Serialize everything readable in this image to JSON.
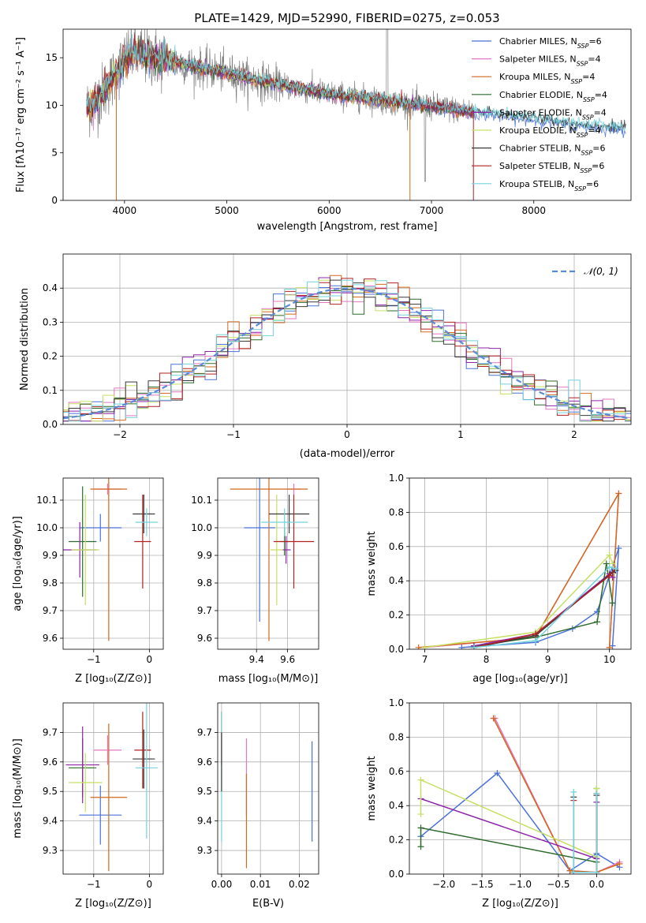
{
  "title": "PLATE=1429, MJD=52990, FIBERID=0275, z=0.053",
  "colors": {
    "chabrier_miles": "#4c72d8",
    "salpeter_miles": "#e377c2",
    "kroupa_miles": "#d2691e",
    "chabrier_elodie": "#2e6b2e",
    "salpeter_elodie": "#8e24aa",
    "kroupa_elodie": "#c5e063",
    "chabrier_stelib": "#3a3a3a",
    "salpeter_stelib": "#b22222",
    "kroupa_stelib": "#72d3dc",
    "data": "#808080",
    "gaussian": "#5b8bd6"
  },
  "chart_data": [
    {
      "id": "spectrum",
      "type": "line",
      "xlabel": "wavelength [Angstrom, rest frame]",
      "ylabel": "Flux [fλ10⁻¹⁷ erg cm⁻² s⁻¹ A⁻¹]",
      "xlim": [
        3400,
        8950
      ],
      "ylim": [
        0,
        18
      ],
      "xticks": [
        4000,
        5000,
        6000,
        7000,
        8000
      ],
      "yticks": [
        0,
        5,
        10,
        15
      ],
      "legend_position": "top-right",
      "continuum": {
        "x": [
          3600,
          3700,
          3800,
          3900,
          4000,
          4100,
          4200,
          4400,
          4600,
          4800,
          5000,
          5200,
          5400,
          5600,
          5800,
          6000,
          6200,
          6400,
          6600,
          6800,
          7000,
          7200,
          7400,
          7600,
          7800,
          8000,
          8200,
          8400,
          8600,
          8800
        ],
        "y": [
          9.5,
          10.2,
          11.5,
          13.0,
          14.8,
          15.6,
          15.2,
          14.8,
          14.3,
          13.8,
          13.4,
          12.8,
          12.4,
          12.0,
          11.6,
          11.2,
          10.9,
          10.7,
          10.4,
          10.1,
          9.9,
          9.6,
          9.3,
          9.1,
          8.8,
          8.6,
          8.3,
          8.0,
          7.8,
          7.6
        ]
      },
      "series": [
        {
          "name": "Chabrier MILES, N",
          "sub": "SSP",
          "suffix": "=6",
          "color_key": "chabrier_miles"
        },
        {
          "name": "Salpeter MILES, N",
          "sub": "SSP",
          "suffix": "=4",
          "color_key": "salpeter_miles"
        },
        {
          "name": "Kroupa MILES, N",
          "sub": "SSP",
          "suffix": "=4",
          "color_key": "kroupa_miles"
        },
        {
          "name": "Chabrier ELODIE, N",
          "sub": "SSP",
          "suffix": "=4",
          "color_key": "chabrier_elodie"
        },
        {
          "name": "Salpeter ELODIE, N",
          "sub": "SSP",
          "suffix": "=4",
          "color_key": "salpeter_elodie"
        },
        {
          "name": "Kroupa ELODIE, N",
          "sub": "SSP",
          "suffix": "=4",
          "color_key": "kroupa_elodie"
        },
        {
          "name": "Chabrier STELIB, N",
          "sub": "SSP",
          "suffix": "=6",
          "color_key": "chabrier_stelib"
        },
        {
          "name": "Salpeter STELIB, N",
          "sub": "SSP",
          "suffix": "=6",
          "color_key": "salpeter_stelib"
        },
        {
          "name": "Kroupa STELIB, N",
          "sub": "SSP",
          "suffix": "=6",
          "color_key": "kroupa_stelib"
        }
      ]
    },
    {
      "id": "residuals",
      "type": "line",
      "xlabel": "(data-model)/error",
      "ylabel": "Normed distribution",
      "xlim": [
        -2.5,
        2.5
      ],
      "ylim": [
        0,
        0.5
      ],
      "xticks": [
        -2,
        -1,
        0,
        1,
        2
      ],
      "yticks": [
        0.0,
        0.1,
        0.2,
        0.3,
        0.4
      ],
      "grid": true,
      "legend_position": "top-right",
      "gaussian_label": "𝒩(0, 1)",
      "bin_width": 0.1
    },
    {
      "id": "age_vs_Z",
      "type": "scatter",
      "xlabel": "Z [log₁₀(Z/Z⊙)]",
      "ylabel": "age  [log₁₀(age/yr)]",
      "xlim": [
        -1.55,
        0.25
      ],
      "ylim": [
        9.56,
        10.18
      ],
      "xticks": [
        -1,
        0
      ],
      "yticks": [
        9.6,
        9.7,
        9.8,
        9.9,
        10.0,
        10.1
      ],
      "grid": true,
      "points": [
        {
          "color_key": "chabrier_miles",
          "x": -0.88,
          "xerr": 0.38,
          "y": 10.0,
          "yerr": 0.05
        },
        {
          "color_key": "salpeter_miles",
          "x": -0.75,
          "xerr": 0.25,
          "y": 10.14,
          "yerr": 0.02
        },
        {
          "color_key": "kroupa_miles",
          "x": -0.73,
          "xerr": 0.33,
          "y": 10.14,
          "yerr": 0.55
        },
        {
          "color_key": "chabrier_elodie",
          "x": -1.2,
          "xerr": 0.25,
          "y": 9.95,
          "yerr": 0.2
        },
        {
          "color_key": "salpeter_elodie",
          "x": -1.25,
          "xerr": 0.3,
          "y": 9.92,
          "yerr": 0.1
        },
        {
          "color_key": "kroupa_elodie",
          "x": -1.15,
          "xerr": 0.25,
          "y": 9.92,
          "yerr": 0.2
        },
        {
          "color_key": "chabrier_stelib",
          "x": -0.1,
          "xerr": 0.2,
          "y": 10.05,
          "yerr": 0.07
        },
        {
          "color_key": "salpeter_stelib",
          "x": -0.12,
          "xerr": 0.15,
          "y": 9.95,
          "yerr": 0.17
        },
        {
          "color_key": "kroupa_stelib",
          "x": -0.05,
          "xerr": 0.2,
          "y": 10.02,
          "yerr": 0.05
        }
      ]
    },
    {
      "id": "age_vs_mass",
      "type": "scatter",
      "xlabel": "mass [log₁₀(M/M⊙)]",
      "ylabel": "",
      "xlim": [
        9.15,
        9.8
      ],
      "ylim": [
        9.56,
        10.18
      ],
      "xticks": [
        9.4,
        9.6
      ],
      "yticks": [
        9.6,
        9.7,
        9.8,
        9.9,
        10.0,
        10.1
      ],
      "grid": true,
      "points": [
        {
          "color_key": "chabrier_miles",
          "x": 9.42,
          "xerr": 0.1,
          "y": 10.0,
          "yerr": 0.34
        },
        {
          "color_key": "salpeter_miles",
          "x": 9.64,
          "xerr": 0.05,
          "y": 10.14,
          "yerr": 0.02
        },
        {
          "color_key": "kroupa_miles",
          "x": 9.48,
          "xerr": 0.25,
          "y": 10.14,
          "yerr": 0.55
        },
        {
          "color_key": "chabrier_elodie",
          "x": 9.58,
          "xerr": 0.03,
          "y": 9.95,
          "yerr": 0.05
        },
        {
          "color_key": "salpeter_elodie",
          "x": 9.59,
          "xerr": 0.03,
          "y": 9.92,
          "yerr": 0.05
        },
        {
          "color_key": "kroupa_elodie",
          "x": 9.53,
          "xerr": 0.04,
          "y": 9.92,
          "yerr": 0.2
        },
        {
          "color_key": "chabrier_stelib",
          "x": 9.61,
          "xerr": 0.13,
          "y": 10.05,
          "yerr": 0.07
        },
        {
          "color_key": "salpeter_stelib",
          "x": 9.64,
          "xerr": 0.13,
          "y": 9.95,
          "yerr": 0.17
        },
        {
          "color_key": "kroupa_stelib",
          "x": 9.58,
          "xerr": 0.15,
          "y": 10.02,
          "yerr": 0.05
        }
      ]
    },
    {
      "id": "mass_weight_vs_age",
      "type": "line",
      "xlabel": "age  [log₁₀(age/yr)]",
      "ylabel": "mass weight",
      "xlim": [
        6.75,
        10.35
      ],
      "ylim": [
        0,
        1.0
      ],
      "xticks": [
        7,
        8,
        9,
        10
      ],
      "yticks": [
        0.0,
        0.2,
        0.4,
        0.6,
        0.8,
        1.0
      ],
      "grid": true,
      "series": [
        {
          "color_key": "chabrier_miles",
          "x": [
            7.6,
            8.8,
            9.4,
            9.8,
            10.15,
            10.05
          ],
          "y": [
            0.01,
            0.04,
            0.12,
            0.22,
            0.59,
            0.02
          ]
        },
        {
          "color_key": "salpeter_miles",
          "x": [
            7.0,
            8.8,
            10.15,
            10.0
          ],
          "y": [
            0.01,
            0.07,
            0.91,
            0.01
          ]
        },
        {
          "color_key": "kroupa_miles",
          "x": [
            6.9,
            8.8,
            10.15,
            10.0
          ],
          "y": [
            0.01,
            0.07,
            0.91,
            0.01
          ]
        },
        {
          "color_key": "chabrier_elodie",
          "x": [
            7.8,
            8.8,
            9.8,
            9.95,
            10.05
          ],
          "y": [
            0.02,
            0.07,
            0.16,
            0.5,
            0.27
          ]
        },
        {
          "color_key": "salpeter_elodie",
          "x": [
            7.8,
            8.8,
            10.0,
            10.05
          ],
          "y": [
            0.02,
            0.09,
            0.44,
            0.42
          ]
        },
        {
          "color_key": "kroupa_elodie",
          "x": [
            7.0,
            8.8,
            10.0,
            10.05
          ],
          "y": [
            0.01,
            0.1,
            0.55,
            0.5
          ]
        },
        {
          "color_key": "chabrier_stelib",
          "x": [
            7.8,
            8.8,
            10.05,
            10.1
          ],
          "y": [
            0.01,
            0.08,
            0.45,
            0.46
          ]
        },
        {
          "color_key": "salpeter_stelib",
          "x": [
            7.8,
            8.8,
            10.0,
            10.1
          ],
          "y": [
            0.01,
            0.09,
            0.43,
            0.47
          ]
        },
        {
          "color_key": "kroupa_stelib",
          "x": [
            7.8,
            8.8,
            10.0,
            10.1
          ],
          "y": [
            0.01,
            0.05,
            0.48,
            0.47
          ]
        }
      ]
    },
    {
      "id": "mass_vs_Z",
      "type": "scatter",
      "xlabel": "Z [log₁₀(Z/Z⊙)]",
      "ylabel": "mass [log₁₀(M/M⊙)]",
      "xlim": [
        -1.55,
        0.25
      ],
      "ylim": [
        9.22,
        9.8
      ],
      "xticks": [
        -1,
        0
      ],
      "yticks": [
        9.3,
        9.4,
        9.5,
        9.6,
        9.7
      ],
      "grid": true,
      "points": [
        {
          "color_key": "chabrier_miles",
          "x": -0.88,
          "xerr": 0.38,
          "y": 9.42,
          "yerr": 0.1
        },
        {
          "color_key": "salpeter_miles",
          "x": -0.75,
          "xerr": 0.25,
          "y": 9.64,
          "yerr": 0.05
        },
        {
          "color_key": "kroupa_miles",
          "x": -0.73,
          "xerr": 0.33,
          "y": 9.48,
          "yerr": 0.25
        },
        {
          "color_key": "chabrier_elodie",
          "x": -1.2,
          "xerr": 0.25,
          "y": 9.58,
          "yerr": 0.1
        },
        {
          "color_key": "salpeter_elodie",
          "x": -1.2,
          "xerr": 0.3,
          "y": 9.59,
          "yerr": 0.13
        },
        {
          "color_key": "kroupa_elodie",
          "x": -1.15,
          "xerr": 0.3,
          "y": 9.53,
          "yerr": 0.1
        },
        {
          "color_key": "chabrier_stelib",
          "x": -0.1,
          "xerr": 0.2,
          "y": 9.61,
          "yerr": 0.1
        },
        {
          "color_key": "salpeter_stelib",
          "x": -0.12,
          "xerr": 0.15,
          "y": 9.64,
          "yerr": 0.13
        },
        {
          "color_key": "kroupa_stelib",
          "x": -0.05,
          "xerr": 0.2,
          "y": 9.58,
          "yerr": 0.24
        }
      ]
    },
    {
      "id": "mass_vs_ebv",
      "type": "scatter",
      "xlabel": "E(B-V)",
      "ylabel": "",
      "xlim": [
        -0.001,
        0.025
      ],
      "ylim": [
        9.22,
        9.8
      ],
      "xticks": [
        0.0,
        0.01,
        0.02
      ],
      "yticks": [
        9.3,
        9.4,
        9.5,
        9.6,
        9.7
      ],
      "grid": true,
      "points": [
        {
          "color_key": "chabrier_miles",
          "x": 0.0233,
          "xerr": 0,
          "y": 9.5,
          "yerr": 0.17
        },
        {
          "color_key": "salpeter_miles",
          "x": 0.0064,
          "xerr": 0,
          "y": 9.55,
          "yerr": 0.13
        },
        {
          "color_key": "kroupa_miles",
          "x": 0.0064,
          "xerr": 0,
          "y": 9.4,
          "yerr": 0.16
        },
        {
          "color_key": "salpeter_stelib",
          "x": 0.0,
          "xerr": 0,
          "y": 9.68,
          "yerr": 0.09
        },
        {
          "color_key": "kroupa_stelib",
          "x": 0.0,
          "xerr": 0,
          "y": 9.55,
          "yerr": 0.22
        },
        {
          "color_key": "chabrier_stelib",
          "x": 0.0,
          "xerr": 0,
          "y": 9.6,
          "yerr": 0.1
        }
      ]
    },
    {
      "id": "mass_weight_vs_Z",
      "type": "line",
      "xlabel": "Z [log₁₀(Z/Z⊙)]",
      "ylabel": "mass weight",
      "xlim": [
        -2.45,
        0.45
      ],
      "ylim": [
        0,
        1.0
      ],
      "xticks": [
        -2.0,
        -1.5,
        -1.0,
        -0.5,
        0.0
      ],
      "yticks": [
        0.0,
        0.2,
        0.4,
        0.6,
        0.8,
        1.0
      ],
      "grid": true,
      "series": [
        {
          "color_key": "chabrier_miles",
          "x": [
            -2.3,
            -1.3,
            -0.35,
            0.0,
            0.3
          ],
          "y": [
            0.22,
            0.59,
            0.02,
            0.12,
            0.04
          ]
        },
        {
          "color_key": "salpeter_miles",
          "x": [
            -1.33,
            -0.35,
            0.0,
            0.3
          ],
          "y": [
            0.91,
            0.02,
            0.01,
            0.07
          ]
        },
        {
          "color_key": "kroupa_miles",
          "x": [
            -1.35,
            -0.35,
            0.0,
            0.3
          ],
          "y": [
            0.91,
            0.02,
            0.01,
            0.06
          ]
        },
        {
          "color_key": "chabrier_elodie",
          "x": [
            -2.3,
            -2.3,
            0.0,
            0.0
          ],
          "y": [
            0.16,
            0.27,
            0.07,
            0.5
          ]
        },
        {
          "color_key": "salpeter_elodie",
          "x": [
            -2.3,
            0.0,
            0.0
          ],
          "y": [
            0.44,
            0.09,
            0.42
          ]
        },
        {
          "color_key": "kroupa_elodie",
          "x": [
            -2.3,
            -2.3,
            0.0,
            0.0
          ],
          "y": [
            0.35,
            0.55,
            0.1,
            0.5
          ]
        },
        {
          "color_key": "chabrier_stelib",
          "x": [
            -0.3,
            -0.3,
            0.0,
            0.0
          ],
          "y": [
            0.45,
            0.01,
            0.01,
            0.46
          ]
        },
        {
          "color_key": "salpeter_stelib",
          "x": [
            -0.3,
            -0.3,
            0.0,
            0.0
          ],
          "y": [
            0.43,
            0.01,
            0.01,
            0.47
          ]
        },
        {
          "color_key": "kroupa_stelib",
          "x": [
            -0.3,
            -0.3,
            0.0,
            0.0
          ],
          "y": [
            0.48,
            0.01,
            0.01,
            0.47
          ]
        }
      ]
    }
  ]
}
